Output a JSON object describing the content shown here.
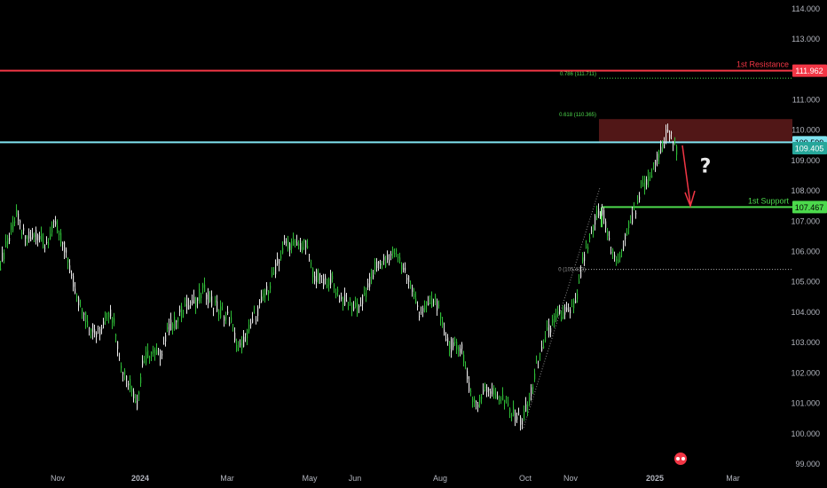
{
  "chart_data": {
    "type": "candlestick",
    "y_axis_ticks": [
      114,
      113,
      112,
      111,
      110,
      109,
      108,
      107,
      106,
      105,
      104,
      103,
      102,
      101,
      100,
      99
    ],
    "y_axis_tick_labels": [
      "114.000",
      "113.000",
      "112.000",
      "111.000",
      "110.000",
      "109.000",
      "108.000",
      "107.000",
      "106.000",
      "105.000",
      "104.000",
      "103.000",
      "102.000",
      "101.000",
      "100.000",
      "99.000"
    ],
    "ylim": [
      99,
      114.2
    ],
    "x_axis_labels": [
      "Nov",
      "2024",
      "Mar",
      "May",
      "Jun",
      "Aug",
      "Oct",
      "Nov",
      "2025",
      "Mar"
    ],
    "series": [
      {
        "path": [
          [
            0,
            105.6
          ],
          [
            8,
            106.3
          ],
          [
            18,
            107.2
          ],
          [
            28,
            106.4
          ],
          [
            40,
            106.6
          ],
          [
            50,
            106.2
          ],
          [
            62,
            106.9
          ],
          [
            72,
            106.1
          ],
          [
            80,
            105.2
          ],
          [
            90,
            104.2
          ],
          [
            100,
            103.6
          ],
          [
            110,
            103.3
          ],
          [
            120,
            104.1
          ],
          [
            128,
            103.8
          ],
          [
            136,
            102.2
          ],
          [
            146,
            101.7
          ],
          [
            154,
            101.0
          ],
          [
            160,
            102.3
          ],
          [
            168,
            102.7
          ],
          [
            180,
            102.6
          ],
          [
            190,
            103.5
          ],
          [
            200,
            103.8
          ],
          [
            210,
            104.3
          ],
          [
            220,
            104.3
          ],
          [
            228,
            104.8
          ],
          [
            238,
            104.3
          ],
          [
            250,
            104.0
          ],
          [
            260,
            103.7
          ],
          [
            268,
            102.7
          ],
          [
            280,
            103.4
          ],
          [
            292,
            104.2
          ],
          [
            302,
            104.8
          ],
          [
            312,
            105.6
          ],
          [
            322,
            106.3
          ],
          [
            332,
            106.2
          ],
          [
            344,
            106.2
          ],
          [
            352,
            105.3
          ],
          [
            362,
            105.0
          ],
          [
            372,
            105.1
          ],
          [
            382,
            104.5
          ],
          [
            392,
            104.3
          ],
          [
            402,
            104.1
          ],
          [
            412,
            104.6
          ],
          [
            422,
            105.5
          ],
          [
            432,
            105.6
          ],
          [
            444,
            106.0
          ],
          [
            452,
            105.6
          ],
          [
            462,
            104.9
          ],
          [
            472,
            104.0
          ],
          [
            482,
            104.2
          ],
          [
            490,
            104.5
          ],
          [
            500,
            103.3
          ],
          [
            510,
            102.8
          ],
          [
            520,
            102.9
          ],
          [
            528,
            101.5
          ],
          [
            538,
            100.9
          ],
          [
            546,
            101.6
          ],
          [
            556,
            101.3
          ],
          [
            566,
            101.2
          ],
          [
            576,
            100.7
          ],
          [
            588,
            100.4
          ],
          [
            596,
            101.1
          ],
          [
            606,
            102.4
          ],
          [
            616,
            103.3
          ],
          [
            626,
            103.8
          ],
          [
            636,
            104.0
          ],
          [
            642,
            103.9
          ],
          [
            650,
            104.5
          ],
          [
            656,
            105.6
          ],
          [
            664,
            106.3
          ],
          [
            672,
            107.2
          ],
          [
            680,
            107.2
          ],
          [
            688,
            106.0
          ],
          [
            698,
            105.7
          ],
          [
            706,
            106.7
          ],
          [
            716,
            107.4
          ],
          [
            722,
            108.1
          ],
          [
            730,
            108.3
          ],
          [
            738,
            108.9
          ],
          [
            746,
            109.4
          ],
          [
            752,
            110.05
          ],
          [
            758,
            109.6
          ],
          [
            764,
            109.3
          ]
        ]
      }
    ],
    "levels": [
      {
        "name": "1st Resistance",
        "value": 111.962,
        "color": "#f23645"
      },
      {
        "name": "1st Support",
        "value": 107.467,
        "color": "#4cd94c"
      },
      {
        "name": "",
        "value": 109.599,
        "color": "#7fe3f0"
      }
    ],
    "fib_labels": [
      {
        "text": "0.786 (111.711)",
        "value": 111.711
      },
      {
        "text": "0.618 (110.365)",
        "value": 110.365
      },
      {
        "text": "0 (105.413)",
        "value": 105.413
      }
    ],
    "price_tags": [
      {
        "text": "111.962",
        "value": 111.962,
        "bg": "#f23645",
        "fg": "#ffffff"
      },
      {
        "text": "109.599",
        "value": 109.599,
        "bg": "#7fe3f0",
        "fg": "#000000"
      },
      {
        "text": "109.405",
        "value": 109.405,
        "bg": "#26a69a",
        "fg": "#ffffff"
      },
      {
        "text": "107.467",
        "value": 107.467,
        "bg": "#4cd94c",
        "fg": "#000000"
      }
    ],
    "resistance_zone": {
      "top": 110.365,
      "bottom": 109.6,
      "color": "#5a1a1a"
    },
    "annotation_question": "?",
    "colors": {
      "up": "#2ebd37",
      "down": "#e8e8e8",
      "grid": "#2a2e39",
      "axis_text": "#b2b5be"
    }
  }
}
